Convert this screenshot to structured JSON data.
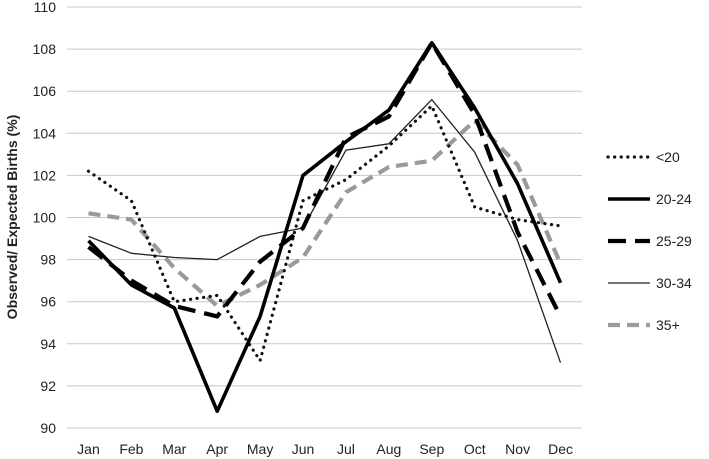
{
  "chart_data": {
    "type": "line",
    "title": "",
    "xlabel": "",
    "ylabel": "Observed/ Expected Births (%)",
    "ylim": [
      90,
      110
    ],
    "yticks": [
      "90",
      "92",
      "94",
      "96",
      "98",
      "100",
      "102",
      "104",
      "106",
      "108",
      "110"
    ],
    "categories": [
      "Jan",
      "Feb",
      "Mar",
      "Apr",
      "May",
      "Jun",
      "Jul",
      "Aug",
      "Sep",
      "Oct",
      "Nov",
      "Dec"
    ],
    "grid": true,
    "legend_position": "right",
    "series": [
      {
        "name": "<20",
        "style": "dotted",
        "color": "#111111",
        "values": [
          102.2,
          100.8,
          96.0,
          96.3,
          93.2,
          100.8,
          101.8,
          103.4,
          105.3,
          100.5,
          99.9,
          99.6
        ]
      },
      {
        "name": "20-24",
        "style": "solid-thick",
        "color": "#000000",
        "values": [
          98.9,
          96.8,
          95.7,
          90.8,
          95.3,
          102.0,
          103.6,
          105.1,
          108.3,
          105.2,
          101.6,
          96.9
        ]
      },
      {
        "name": "25-29",
        "style": "dashed",
        "color": "#000000",
        "values": [
          98.6,
          97.0,
          95.8,
          95.3,
          97.9,
          99.5,
          103.8,
          104.8,
          108.3,
          104.9,
          99.3,
          95.3
        ]
      },
      {
        "name": "30-34",
        "style": "solid-thin",
        "color": "#222222",
        "values": [
          99.1,
          98.3,
          98.1,
          98.0,
          99.1,
          99.5,
          103.2,
          103.5,
          105.6,
          103.1,
          98.9,
          93.1
        ]
      },
      {
        "name": "35+",
        "style": "dashed-gray",
        "color": "#9a9a9a",
        "values": [
          100.2,
          99.9,
          97.6,
          95.8,
          96.8,
          98.1,
          101.2,
          102.4,
          102.7,
          104.6,
          102.5,
          97.8
        ]
      }
    ]
  }
}
